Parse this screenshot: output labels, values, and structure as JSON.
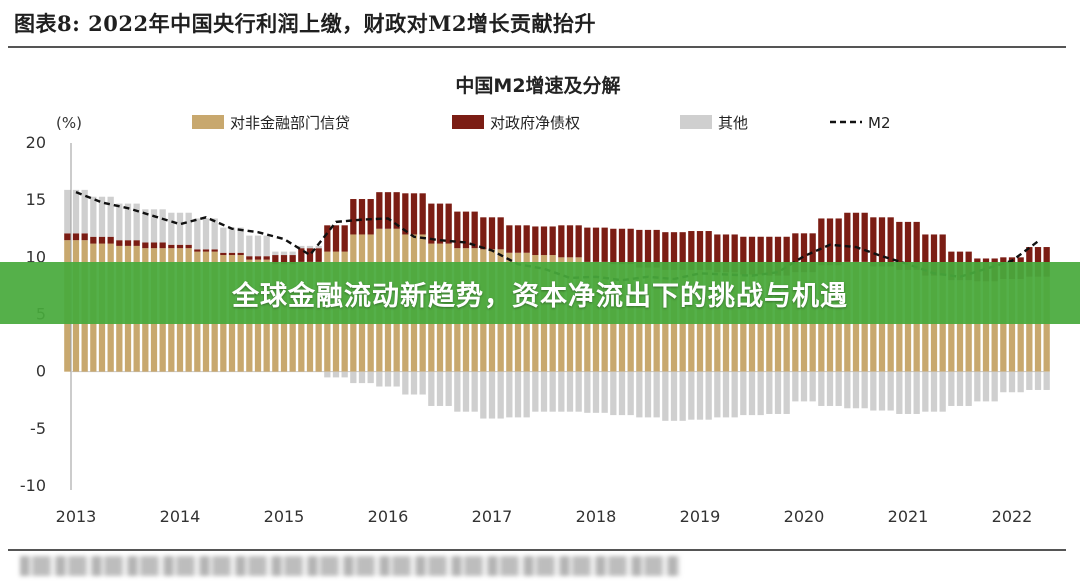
{
  "figure": {
    "title": "图表8: 2022年中国央行利润上缴，财政对M2增长贡献抬升"
  },
  "banner": {
    "text": "全球金融流动新趋势，资本净流出下的挑战与机遇"
  },
  "chart_data": {
    "type": "bar",
    "title": "中国M2增速及分解",
    "ylabel": "(%)",
    "ylim": [
      -10,
      20
    ],
    "yticks": [
      "20",
      "15",
      "10",
      "5",
      "0",
      "-5",
      "-10"
    ],
    "year_labels": [
      "2013",
      "2014",
      "2015",
      "2016",
      "2017",
      "2018",
      "2019",
      "2020",
      "2021",
      "2022"
    ],
    "x_start": "2013-01",
    "x_end": "2022-06",
    "grid": false,
    "legend_position": "top",
    "colors": {
      "credit": "#c8a86e",
      "govt": "#7b1d14",
      "other": "#cfcfcf",
      "m2": "#111111"
    },
    "legend": [
      {
        "key": "credit",
        "label": "对非金融部门信贷",
        "kind": "bar"
      },
      {
        "key": "govt",
        "label": "对政府净债权",
        "kind": "bar"
      },
      {
        "key": "other",
        "label": "其他",
        "kind": "bar"
      },
      {
        "key": "m2",
        "label": "M2",
        "kind": "dash"
      }
    ],
    "stack_note": "quarterly stacked bars; M2 dashed line",
    "series": {
      "quarters": [
        "2013Q1",
        "2013Q2",
        "2013Q3",
        "2013Q4",
        "2014Q1",
        "2014Q2",
        "2014Q3",
        "2014Q4",
        "2015Q1",
        "2015Q2",
        "2015Q3",
        "2015Q4",
        "2016Q1",
        "2016Q2",
        "2016Q3",
        "2016Q4",
        "2017Q1",
        "2017Q2",
        "2017Q3",
        "2017Q4",
        "2018Q1",
        "2018Q2",
        "2018Q3",
        "2018Q4",
        "2019Q1",
        "2019Q2",
        "2019Q3",
        "2019Q4",
        "2020Q1",
        "2020Q2",
        "2020Q3",
        "2020Q4",
        "2021Q1",
        "2021Q2",
        "2021Q3",
        "2021Q4",
        "2022Q1",
        "2022Q2"
      ],
      "credit": [
        11.5,
        11.2,
        11.0,
        10.8,
        10.8,
        10.5,
        10.2,
        9.8,
        9.4,
        9.6,
        10.5,
        12.0,
        12.5,
        12.0,
        11.2,
        10.8,
        10.7,
        10.4,
        10.2,
        10.0,
        9.6,
        9.4,
        9.1,
        8.9,
        8.9,
        8.7,
        8.5,
        8.4,
        8.7,
        9.3,
        9.6,
        9.2,
        8.9,
        8.4,
        8.0,
        7.9,
        8.1,
        8.3
      ],
      "govt": [
        0.6,
        0.6,
        0.5,
        0.5,
        0.3,
        0.2,
        0.2,
        0.3,
        0.8,
        1.2,
        2.3,
        3.1,
        3.2,
        3.6,
        3.5,
        3.2,
        2.8,
        2.4,
        2.5,
        2.8,
        3.0,
        3.1,
        3.3,
        3.3,
        3.4,
        3.3,
        3.3,
        3.4,
        3.4,
        4.1,
        4.3,
        4.3,
        4.2,
        3.6,
        2.5,
        2.0,
        1.9,
        2.6
      ],
      "other": [
        3.8,
        3.5,
        3.2,
        2.9,
        2.8,
        2.7,
        2.2,
        1.8,
        0.3,
        0.2,
        -0.5,
        -1.0,
        -1.3,
        -2.0,
        -3.0,
        -3.5,
        -4.1,
        -4.0,
        -3.5,
        -3.5,
        -3.6,
        -3.8,
        -4.0,
        -4.3,
        -4.2,
        -4.0,
        -3.8,
        -3.7,
        -2.6,
        -3.0,
        -3.2,
        -3.4,
        -3.7,
        -3.5,
        -3.0,
        -2.6,
        -1.8,
        -1.6
      ],
      "m2": [
        15.7,
        14.8,
        14.3,
        13.6,
        12.9,
        13.5,
        12.5,
        12.2,
        11.6,
        10.2,
        13.1,
        13.3,
        13.4,
        11.8,
        11.5,
        11.3,
        10.6,
        9.4,
        9.0,
        8.2,
        8.3,
        8.0,
        8.3,
        8.1,
        8.6,
        8.5,
        8.4,
        8.7,
        10.1,
        11.1,
        10.9,
        10.1,
        9.4,
        8.6,
        8.3,
        9.0,
        9.7,
        11.4
      ]
    }
  }
}
